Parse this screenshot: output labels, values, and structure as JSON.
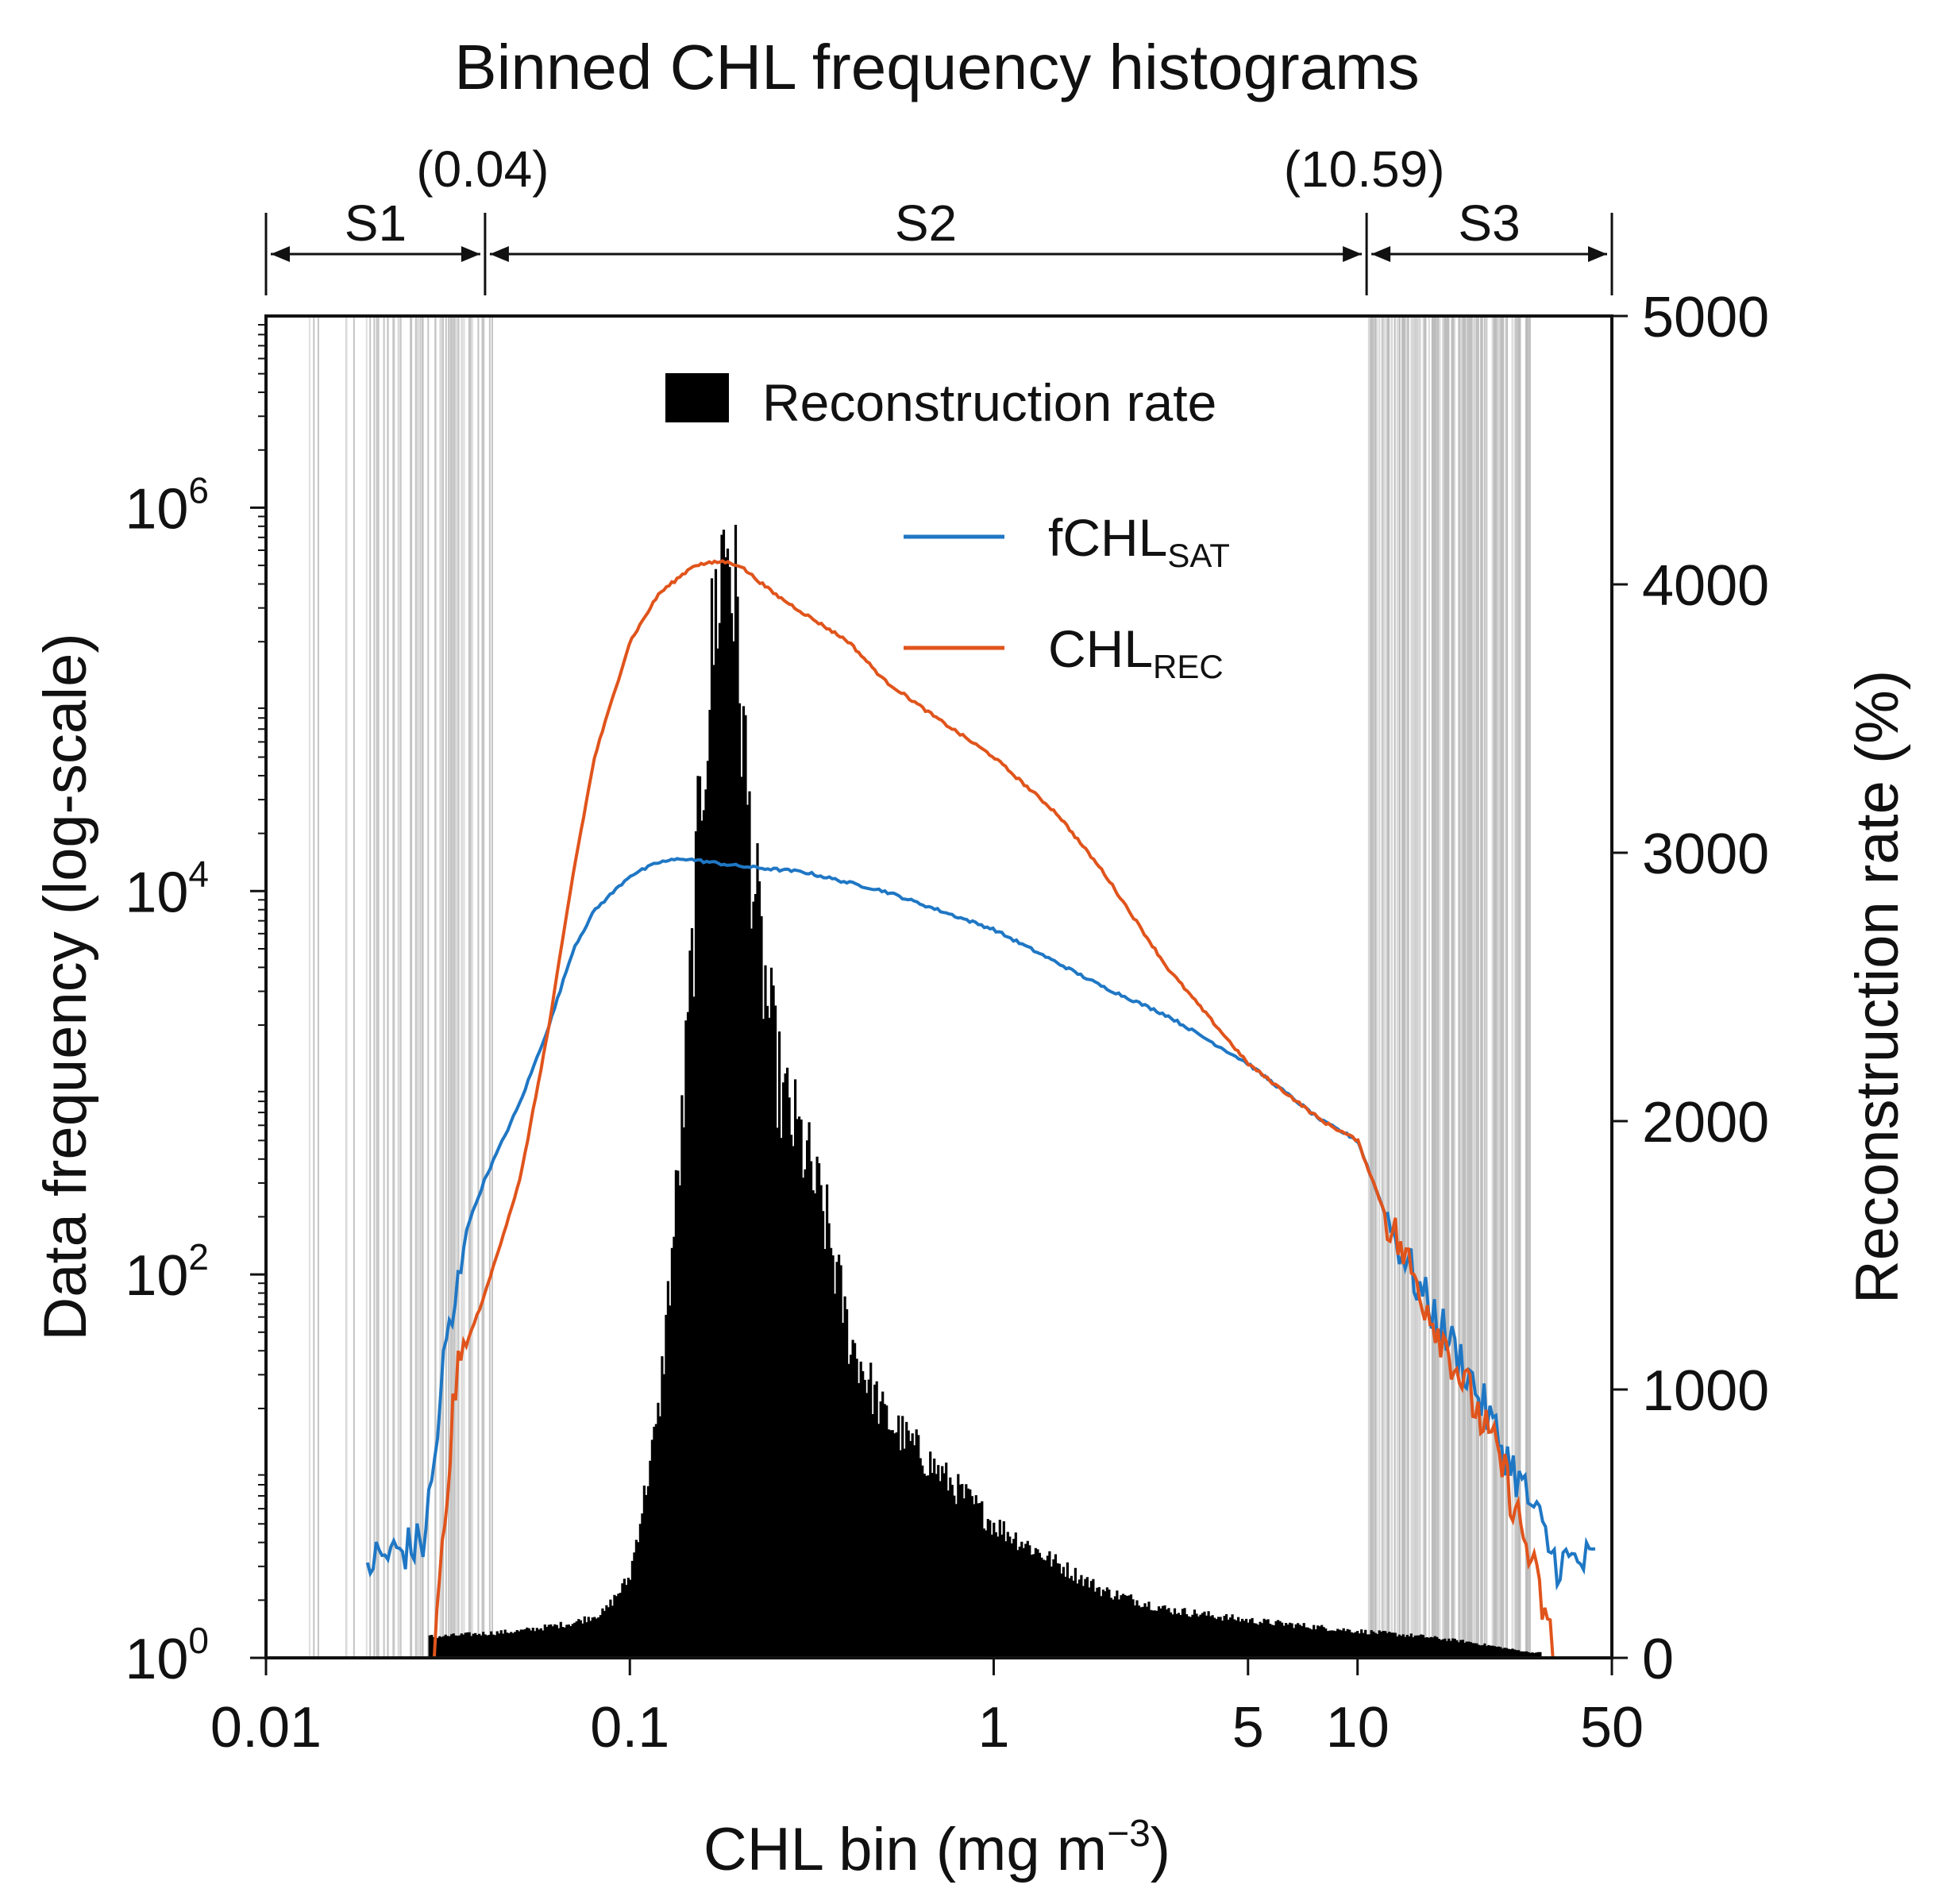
{
  "chart_data": {
    "type": "histogram_with_lines",
    "title": "Binned CHL frequency histograms",
    "xlabel": "CHL bin (mg m",
    "xlabel_sup": "−3",
    "xlabel_close": ")",
    "xscale": "log",
    "xlim": [
      0.01,
      50
    ],
    "xticks": [
      {
        "value": 0.01,
        "label": "0.01"
      },
      {
        "value": 0.1,
        "label": "0.1"
      },
      {
        "value": 1,
        "label": "1"
      },
      {
        "value": 5,
        "label": "5"
      },
      {
        "value": 10,
        "label": "10"
      },
      {
        "value": 50,
        "label": "50"
      }
    ],
    "ylabel_left": "Data frequency (log-scale)",
    "yscale_left": "log",
    "ylim_left_exp": [
      0,
      7
    ],
    "yticks_left": [
      {
        "exp": 0,
        "base": "10",
        "sup": "0"
      },
      {
        "exp": 2,
        "base": "10",
        "sup": "2"
      },
      {
        "exp": 4,
        "base": "10",
        "sup": "4"
      },
      {
        "exp": 6,
        "base": "10",
        "sup": "6"
      }
    ],
    "ylabel_right": "Reconstruction rate (%)",
    "ylim_right": [
      0,
      5000
    ],
    "yticks_right": [
      {
        "value": 0,
        "label": "0"
      },
      {
        "value": 1000,
        "label": "1000"
      },
      {
        "value": 2000,
        "label": "2000"
      },
      {
        "value": 3000,
        "label": "3000"
      },
      {
        "value": 4000,
        "label": "4000"
      },
      {
        "value": 5000,
        "label": "5000"
      }
    ],
    "segments": [
      {
        "name": "S1",
        "from": 0.01,
        "to": 0.04
      },
      {
        "name": "S2",
        "from": 0.04,
        "to": 10.59
      },
      {
        "name": "S3",
        "from": 10.59,
        "to": 50
      }
    ],
    "boundaries": [
      {
        "value": 0.04,
        "label": "(0.04)"
      },
      {
        "value": 10.59,
        "label": "(10.59)"
      }
    ],
    "legend": [
      {
        "label": "Reconstruction rate",
        "kind": "bar",
        "color": "#000000"
      },
      {
        "label": "fCHL",
        "sub": "SAT",
        "kind": "line",
        "color": "#1f77c4"
      },
      {
        "label": "CHL",
        "sub": "REC",
        "kind": "line",
        "color": "#e0541c"
      }
    ],
    "reconstruction_rate": {
      "name": "Reconstruction rate",
      "axis": "right",
      "color": "#000000",
      "x": [
        0.03,
        0.05,
        0.07,
        0.085,
        0.1,
        0.12,
        0.14,
        0.16,
        0.175,
        0.185,
        0.19,
        0.2,
        0.21,
        0.23,
        0.26,
        0.3,
        0.35,
        0.4,
        0.5,
        0.7,
        1,
        1.5,
        2,
        3,
        5,
        10,
        15,
        20,
        30
      ],
      "values": [
        80,
        100,
        130,
        170,
        300,
        900,
        2000,
        3400,
        4000,
        4200,
        4100,
        3700,
        3200,
        2600,
        2100,
        1900,
        1600,
        1200,
        900,
        700,
        500,
        350,
        250,
        180,
        140,
        100,
        80,
        60,
        20
      ]
    },
    "series": [
      {
        "name": "fCHL_SAT",
        "label": "fCHL",
        "sub": "SAT",
        "color": "#1f77c4",
        "x": [
          0.019,
          0.027,
          0.029,
          0.031,
          0.033,
          0.035,
          0.04,
          0.05,
          0.06,
          0.07,
          0.08,
          0.1,
          0.12,
          0.14,
          0.2,
          0.3,
          0.5,
          1,
          2,
          3,
          5,
          8,
          10,
          12,
          15,
          20,
          25,
          30,
          35,
          40,
          45
        ],
        "log10_values": [
          0.5,
          0.6,
          1.0,
          1.6,
          1.8,
          2.2,
          2.5,
          2.9,
          3.3,
          3.7,
          3.9,
          4.08,
          4.15,
          4.17,
          4.13,
          4.1,
          4.0,
          3.8,
          3.5,
          3.35,
          3.1,
          2.8,
          2.7,
          2.3,
          1.9,
          1.5,
          1.1,
          0.8,
          0.5,
          0.5,
          0.5
        ]
      },
      {
        "name": "CHL_REC",
        "label": "CHL",
        "sub": "REC",
        "color": "#e0541c",
        "x": [
          0.029,
          0.031,
          0.033,
          0.035,
          0.04,
          0.05,
          0.06,
          0.07,
          0.08,
          0.1,
          0.12,
          0.15,
          0.18,
          0.2,
          0.25,
          0.3,
          0.4,
          0.5,
          0.7,
          1,
          1.5,
          2,
          3,
          5,
          8,
          10,
          12,
          15,
          20,
          25,
          30,
          35
        ],
        "log10_values": [
          0.0,
          0.7,
          1.4,
          1.6,
          1.9,
          2.5,
          3.3,
          4.1,
          4.7,
          5.3,
          5.55,
          5.7,
          5.72,
          5.7,
          5.55,
          5.45,
          5.3,
          5.1,
          4.9,
          4.7,
          4.4,
          4.1,
          3.6,
          3.1,
          2.8,
          2.7,
          2.3,
          1.9,
          1.4,
          1.0,
          0.5,
          0.0
        ]
      }
    ],
    "shading": "gray vertical lines in segments S1 and S3"
  }
}
